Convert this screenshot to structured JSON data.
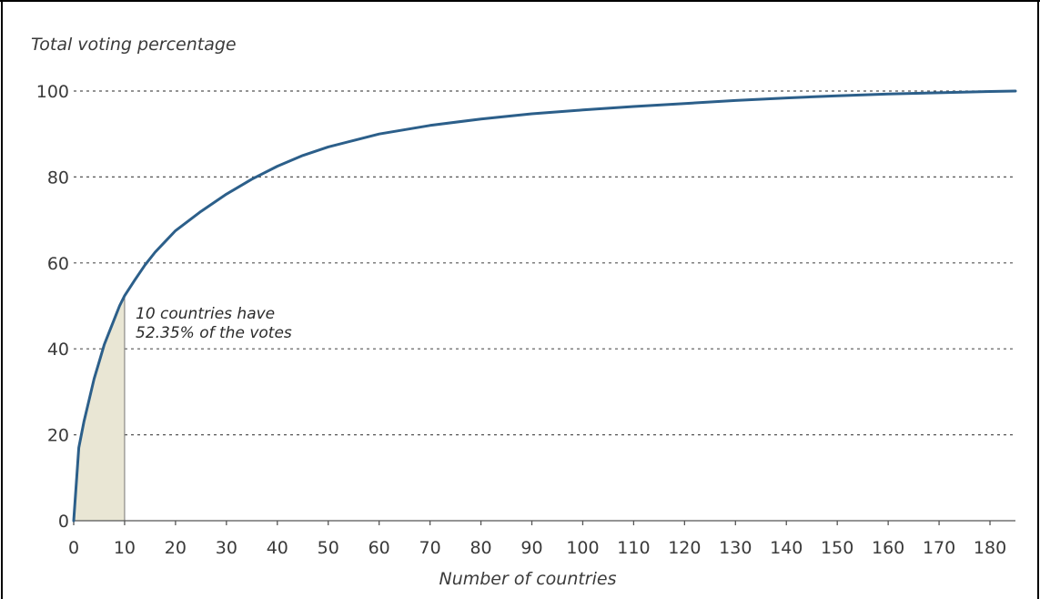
{
  "chart_data": {
    "type": "area",
    "title": "",
    "ylabel": "Total voting percentage",
    "xlabel": "Number of countries",
    "xlim": [
      0,
      185
    ],
    "ylim": [
      0,
      100
    ],
    "xticks": [
      "0",
      "10",
      "20",
      "30",
      "40",
      "50",
      "60",
      "70",
      "80",
      "90",
      "100",
      "110",
      "120",
      "130",
      "140",
      "150",
      "160",
      "170",
      "180"
    ],
    "yticks": [
      "0",
      "20",
      "40",
      "60",
      "80",
      "100"
    ],
    "grid": "horizontal dashed",
    "series": [
      {
        "x": [
          0,
          1,
          2,
          3,
          4,
          5,
          6,
          7,
          8,
          9,
          10,
          12,
          14,
          16,
          18,
          20,
          25,
          30,
          35,
          40,
          45,
          50,
          55,
          60,
          70,
          80,
          90,
          100,
          110,
          120,
          130,
          140,
          150,
          160,
          170,
          180,
          185
        ],
        "y": [
          0,
          17,
          23,
          28,
          33,
          37,
          41,
          44,
          47,
          50,
          52.35,
          56,
          59.5,
          62.5,
          65,
          67.5,
          72,
          76,
          79.5,
          82.5,
          85,
          87,
          88.5,
          90,
          92,
          93.5,
          94.7,
          95.6,
          96.4,
          97.1,
          97.8,
          98.4,
          98.9,
          99.3,
          99.6,
          99.9,
          100
        ]
      }
    ],
    "highlight": {
      "x_range": [
        0,
        10
      ],
      "annotation_line1": "10 countries have",
      "annotation_line2": "52.35% of the votes"
    }
  }
}
